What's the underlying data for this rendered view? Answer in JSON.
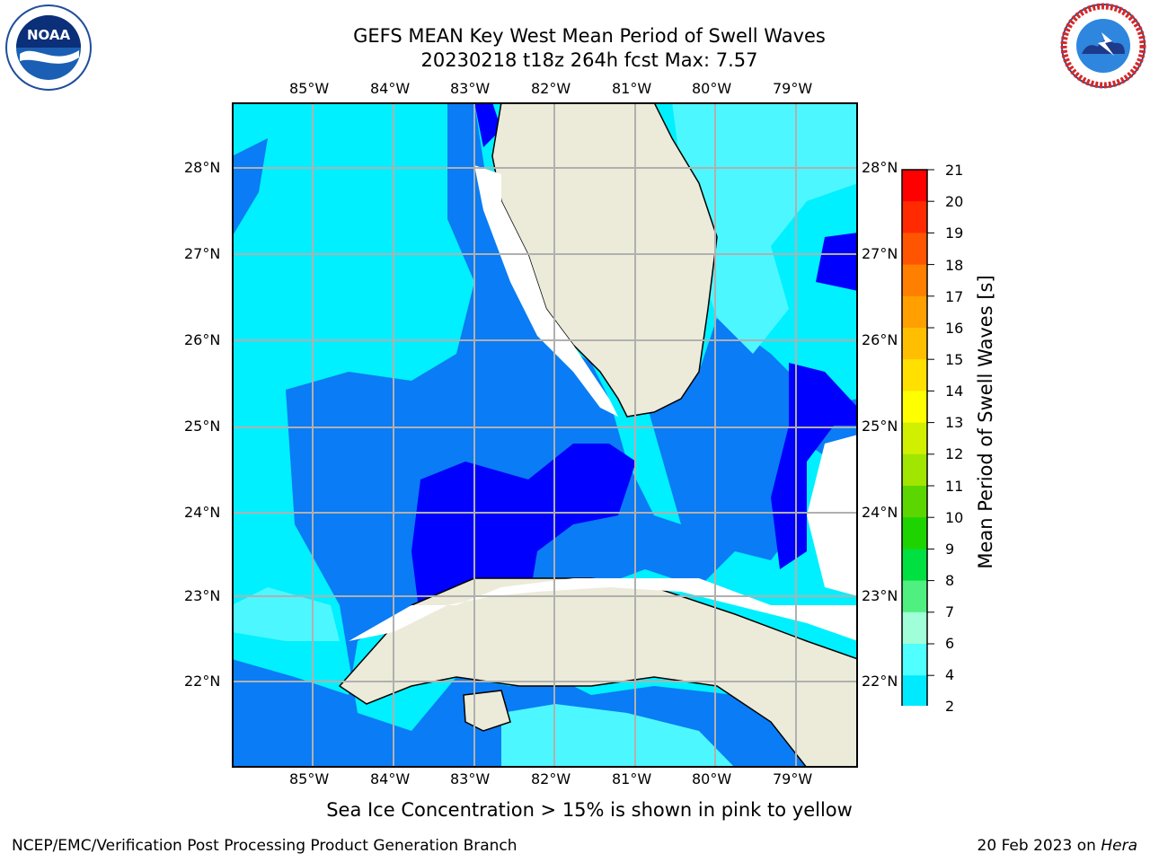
{
  "header": {
    "title_line1": "GEFS MEAN Key West Mean Period of Swell Waves",
    "title_line2": "20230218 t18z 264h fcst   Max: 7.57"
  },
  "logos": {
    "left": {
      "name": "noaa-logo",
      "text": "NOAA"
    },
    "right": {
      "name": "nws-logo",
      "text": "NATIONAL WEATHER SERVICE"
    }
  },
  "map": {
    "lon_labels": [
      "85°W",
      "84°W",
      "83°W",
      "82°W",
      "81°W",
      "80°W",
      "79°W"
    ],
    "lat_labels": [
      "28°N",
      "27°N",
      "26°N",
      "25°N",
      "24°N",
      "23°N",
      "22°N"
    ]
  },
  "colorbar": {
    "title": "Mean Period of Swell Waves [s]",
    "ticks": [
      "21",
      "20",
      "19",
      "18",
      "17",
      "16",
      "15",
      "14",
      "13",
      "12",
      "11",
      "10",
      "9",
      "8",
      "7",
      "6",
      "4",
      "2"
    ],
    "colors": [
      "#ff0000",
      "#ff2a00",
      "#ff5500",
      "#ff7f00",
      "#ff9f00",
      "#ffbf00",
      "#ffe000",
      "#ffff00",
      "#d0f000",
      "#a0e600",
      "#5cd600",
      "#1ed400",
      "#00e040",
      "#50f080",
      "#a0ffd8",
      "#50ffff",
      "#00eaff",
      "#0080ff",
      "#0000ff"
    ]
  },
  "footer": {
    "note": "Sea Ice Concentration > 15% is shown in pink to yellow",
    "left": "NCEP/EMC/Verification Post Processing Product Generation Branch",
    "date": "20 Feb 2023 on ",
    "host": "Hera"
  }
}
